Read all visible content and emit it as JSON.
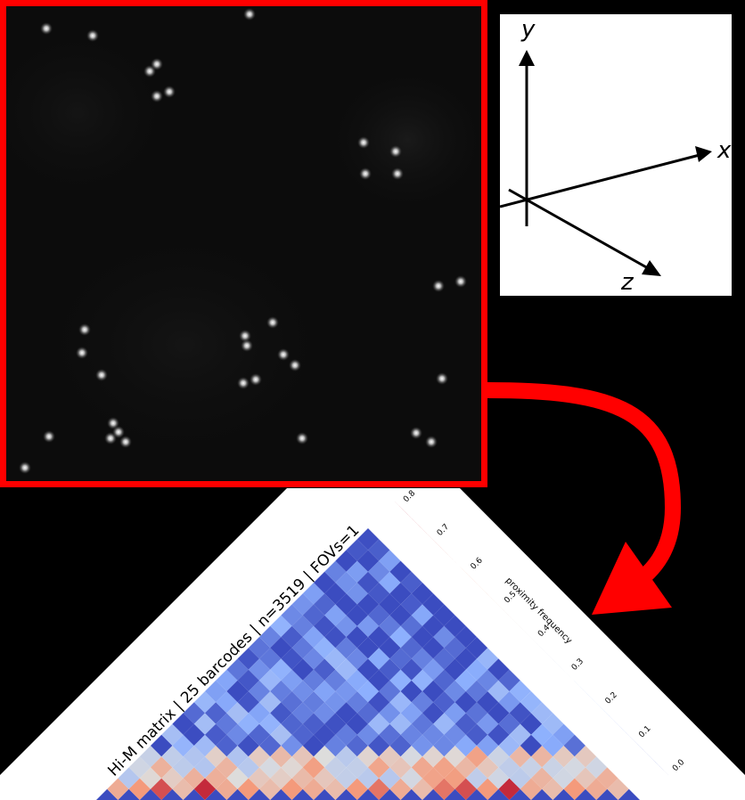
{
  "microscopy_panel": {
    "border_color": "#ff0000",
    "spots": [
      [
        52,
        32
      ],
      [
        104,
        40
      ],
      [
        168,
        80
      ],
      [
        176,
        72
      ],
      [
        176,
        108
      ],
      [
        190,
        103
      ],
      [
        280,
        16
      ],
      [
        408,
        160
      ],
      [
        444,
        170
      ],
      [
        410,
        195
      ],
      [
        446,
        195
      ],
      [
        492,
        321
      ],
      [
        517,
        316
      ],
      [
        95,
        370
      ],
      [
        92,
        396
      ],
      [
        114,
        421
      ],
      [
        275,
        377
      ],
      [
        277,
        388
      ],
      [
        306,
        362
      ],
      [
        318,
        398
      ],
      [
        331,
        410
      ],
      [
        273,
        430
      ],
      [
        287,
        426
      ],
      [
        496,
        425
      ],
      [
        127,
        475
      ],
      [
        124,
        492
      ],
      [
        133,
        485
      ],
      [
        141,
        496
      ],
      [
        55,
        490
      ],
      [
        339,
        492
      ],
      [
        467,
        486
      ],
      [
        484,
        496
      ],
      [
        28,
        525
      ]
    ]
  },
  "axes_panel": {
    "y_label": "y",
    "x_label": "x",
    "z_label": "z"
  },
  "arrow": {
    "color": "#ff0000"
  },
  "him_panel": {
    "title": "Hi-M matrix | 25 barcodes | n=3519 | FOVs=1",
    "colorbar": {
      "label": "proximity frequency",
      "ticks": [
        "0.0",
        "0.1",
        "0.2",
        "0.3",
        "0.4",
        "0.5",
        "0.6",
        "0.7",
        "0.8"
      ],
      "tick_values": [
        0.0,
        0.1,
        0.2,
        0.3,
        0.4,
        0.5,
        0.6,
        0.7,
        0.8
      ],
      "colormap": "coolwarm",
      "min_color": "#3b4cc0",
      "mid_color": "#dddddd",
      "max_color": "#b40426"
    }
  },
  "chart_data": {
    "type": "heatmap",
    "title": "Hi-M matrix | 25 barcodes | n=3519 | FOVs=1",
    "n_barcodes": 25,
    "value_range": [
      0.0,
      0.8
    ],
    "colorbar_label": "proximity frequency",
    "diagonal_band_values": [
      0.55,
      0.6,
      0.7,
      0.5,
      0.75,
      0.55,
      0.6,
      0.5,
      0.6,
      0.55,
      0.5,
      0.6,
      0.65,
      0.55,
      0.5,
      0.65,
      0.7,
      0.6,
      0.75,
      0.55,
      0.5,
      0.6,
      0.55,
      0.5,
      0.6
    ],
    "offdiag_near_mean": 0.45,
    "offdiag_far_mean": 0.15
  }
}
